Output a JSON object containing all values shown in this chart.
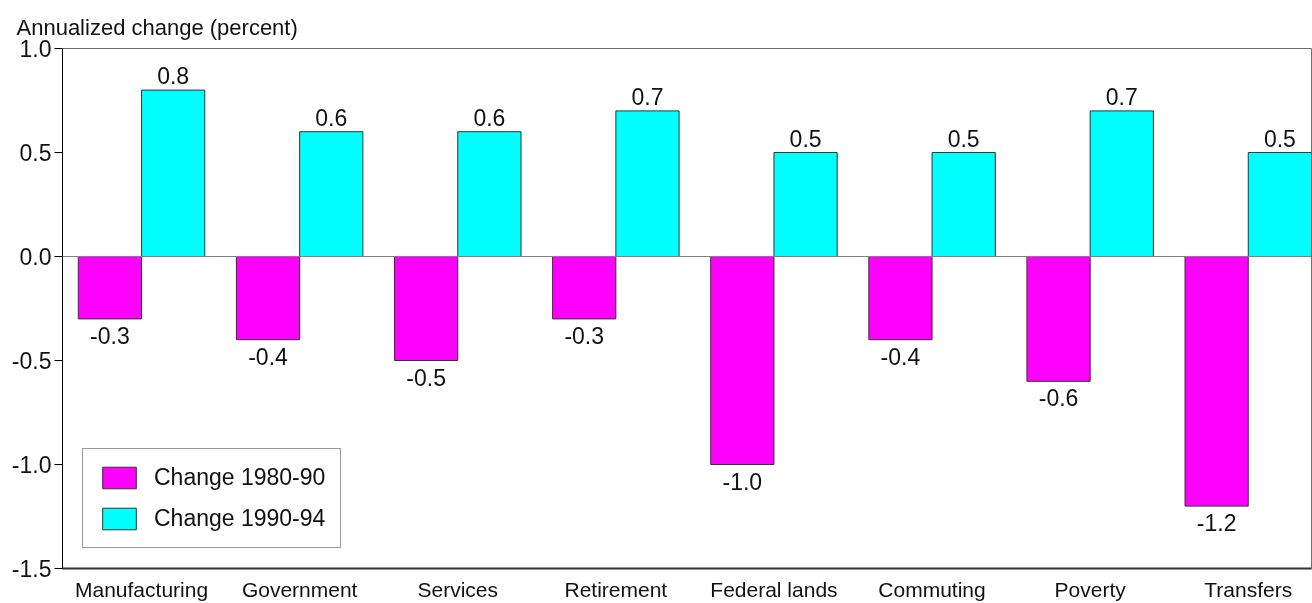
{
  "chart_data": {
    "type": "bar",
    "ylabel": "Annualized change (percent)",
    "categories": [
      "Manufacturing",
      "Government",
      "Services",
      "Retirement",
      "Federal lands",
      "Commuting",
      "Poverty",
      "Transfers"
    ],
    "series": [
      {
        "name": "Change 1980-90",
        "color": "#ff00ff",
        "values": [
          -0.3,
          -0.4,
          -0.5,
          -0.3,
          -1.0,
          -0.4,
          -0.6,
          -1.2
        ],
        "value_labels": [
          "-0.3",
          "-0.4",
          "-0.5",
          "-0.3",
          "-1.0",
          "-0.4",
          "-0.6",
          "-1.2"
        ]
      },
      {
        "name": "Change 1990-94",
        "color": "#00ffff",
        "values": [
          0.8,
          0.6,
          0.6,
          0.7,
          0.5,
          0.5,
          0.7,
          0.5
        ],
        "value_labels": [
          "0.8",
          "0.6",
          "0.6",
          "0.7",
          "0.5",
          "0.5",
          "0.7",
          "0.5"
        ]
      }
    ],
    "ylim": [
      -1.5,
      1.0
    ],
    "yticks": [
      {
        "value": -1.5,
        "label": "-1.5"
      },
      {
        "value": -1.0,
        "label": "-1.0"
      },
      {
        "value": -0.5,
        "label": "-0.5"
      },
      {
        "value": 0.0,
        "label": "0.0"
      },
      {
        "value": 0.5,
        "label": "0.5"
      },
      {
        "value": 1.0,
        "label": "1.0"
      }
    ],
    "ref_lines": [
      {
        "axis": "y",
        "value": 0,
        "color": "#808080"
      }
    ],
    "legend": "bottom left"
  }
}
